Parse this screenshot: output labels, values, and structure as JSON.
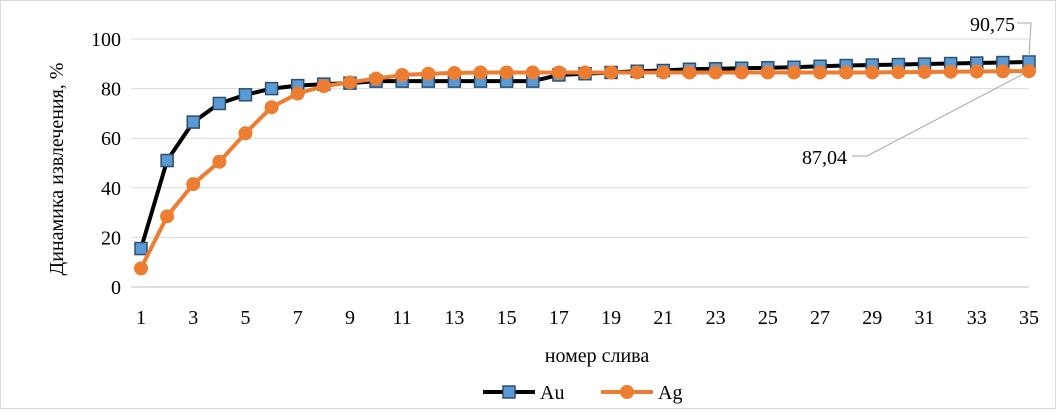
{
  "chart_data": {
    "type": "line",
    "xlabel": "номер слива",
    "ylabel": "Динамика извлечения, %",
    "ylim": [
      0,
      100
    ],
    "yticks": [
      0,
      20,
      40,
      60,
      80,
      100
    ],
    "x": [
      1,
      2,
      3,
      4,
      5,
      6,
      7,
      8,
      9,
      10,
      11,
      12,
      13,
      14,
      15,
      16,
      17,
      18,
      19,
      20,
      21,
      22,
      23,
      24,
      25,
      26,
      27,
      28,
      29,
      30,
      31,
      32,
      33,
      34,
      35
    ],
    "xtick_labels": [
      "1",
      "3",
      "5",
      "7",
      "9",
      "11",
      "13",
      "15",
      "17",
      "19",
      "21",
      "23",
      "25",
      "27",
      "29",
      "31",
      "33",
      "35"
    ],
    "grid": "horizontal",
    "legend_position": "bottom",
    "series": [
      {
        "name": "Au",
        "color": "#000000",
        "marker": "square",
        "marker_fill": "#5b9bd5",
        "values": [
          15.5,
          51,
          66.5,
          74,
          77.5,
          80,
          81.2,
          81.8,
          82.2,
          83,
          83,
          83,
          83,
          83,
          83,
          83,
          85.5,
          86,
          86.5,
          87,
          87.3,
          87.8,
          88,
          88.2,
          88.4,
          88.6,
          89,
          89.3,
          89.5,
          89.7,
          89.9,
          90.1,
          90.3,
          90.5,
          90.75
        ]
      },
      {
        "name": "Ag",
        "color": "#ed7d31",
        "marker": "circle",
        "marker_fill": "#ed7d31",
        "values": [
          7.5,
          28.5,
          41.5,
          50.5,
          62,
          72.5,
          78,
          81,
          82.5,
          84,
          85.5,
          86,
          86.3,
          86.5,
          86.5,
          86.5,
          86.5,
          86.5,
          86.5,
          86.5,
          86.5,
          86.5,
          86.5,
          86.5,
          86.5,
          86.5,
          86.5,
          86.5,
          86.5,
          86.6,
          86.7,
          86.8,
          86.9,
          87,
          87.04
        ]
      }
    ],
    "annotations": [
      {
        "series": "Au",
        "point_index": 34,
        "text": "90,75"
      },
      {
        "series": "Ag",
        "point_index": 34,
        "text": "87,04"
      }
    ]
  }
}
